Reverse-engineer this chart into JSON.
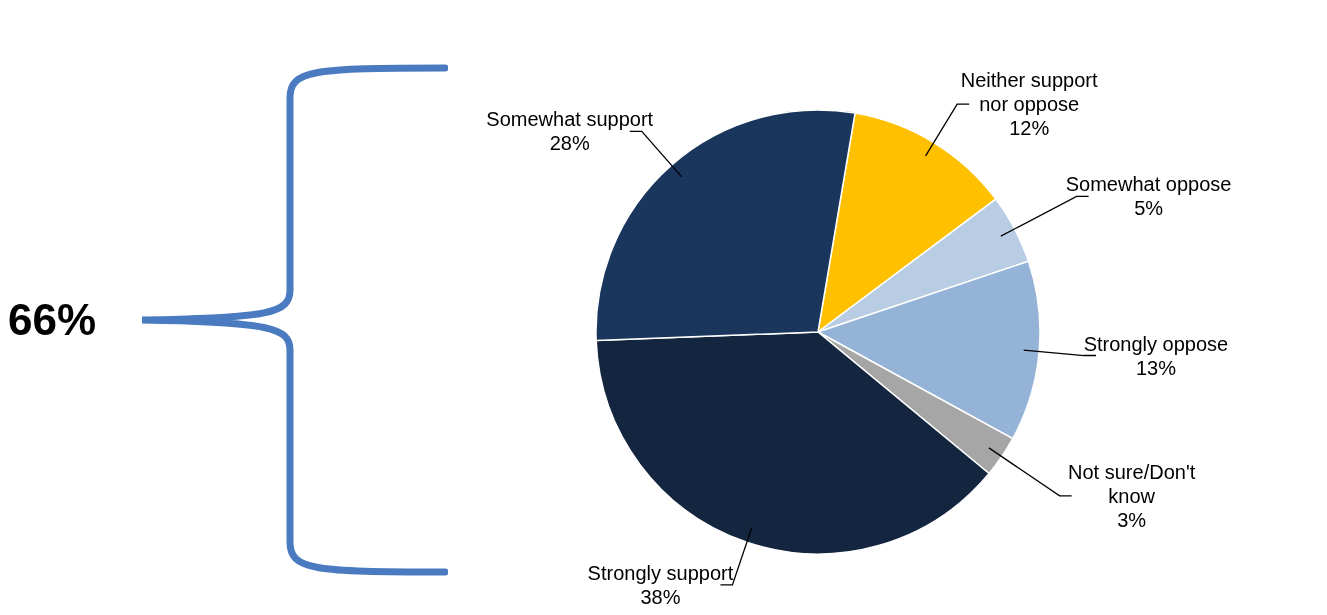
{
  "chart_data": {
    "type": "pie",
    "categories": [
      "Neither support nor oppose",
      "Somewhat oppose",
      "Strongly oppose",
      "Not sure/Don't know",
      "Strongly support",
      "Somewhat support"
    ],
    "values": [
      12,
      5,
      13,
      3,
      38,
      28
    ],
    "value_labels": [
      "12%",
      "5%",
      "13%",
      "3%",
      "38%",
      "28%"
    ],
    "colors": [
      "#ffc000",
      "#b8cce4",
      "#95b3d7",
      "#a6a6a6",
      "#13253f",
      "#1a365d"
    ],
    "annotations": [
      "66%"
    ],
    "legend": false
  }
}
